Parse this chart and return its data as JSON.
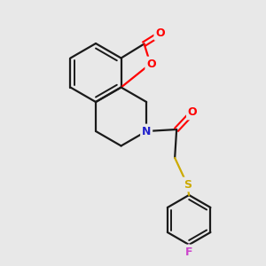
{
  "background_color": "#e8e8e8",
  "bond_color": "#1a1a1a",
  "atom_colors": {
    "O": "#ff0000",
    "N": "#2222cc",
    "S": "#ccaa00",
    "F": "#cc44cc"
  },
  "figsize": [
    3.0,
    3.0
  ],
  "dpi": 100
}
